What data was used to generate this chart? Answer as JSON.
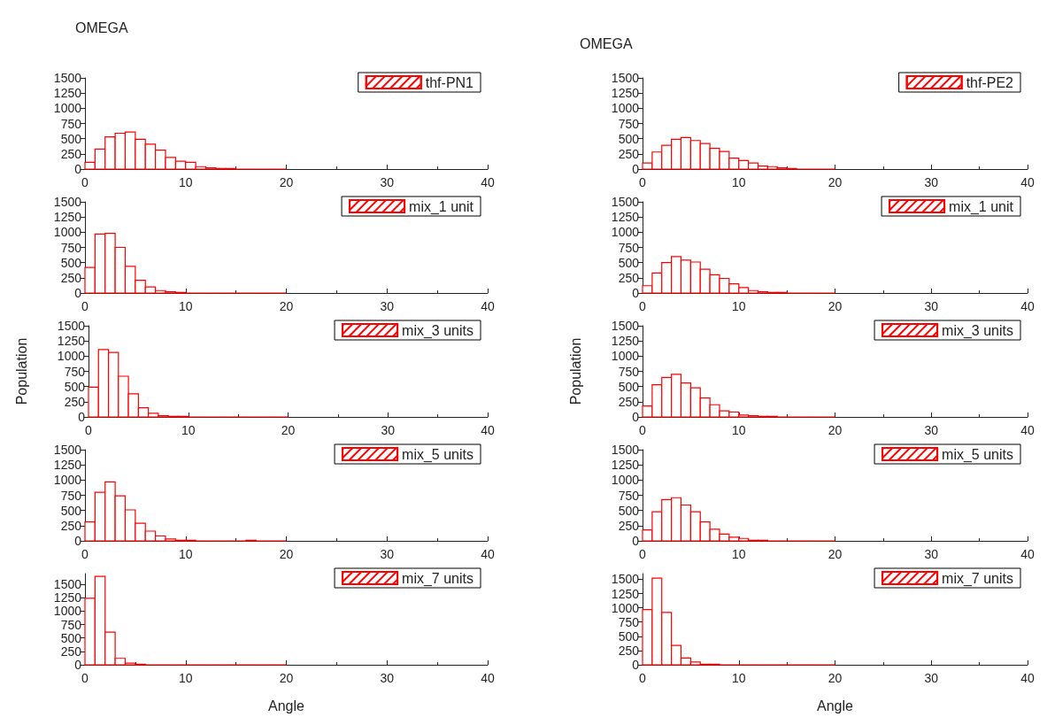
{
  "chart_data": [
    {
      "type": "histogram",
      "title": "OMEGA",
      "bins": [
        0,
        1,
        2,
        3,
        4,
        5,
        6,
        7,
        8,
        9,
        10,
        11,
        12,
        13,
        14,
        15,
        16,
        17,
        18,
        19,
        20
      ],
      "series": [
        {
          "name": "thf-PN1",
          "color": "#ff0000",
          "values": [
            110,
            330,
            530,
            590,
            610,
            490,
            410,
            310,
            190,
            130,
            110,
            40,
            20,
            10,
            10,
            0,
            0,
            0,
            0,
            0
          ]
        }
      ],
      "xlim": [
        0,
        40
      ],
      "xticks": [
        0,
        10,
        20,
        30,
        40
      ],
      "ylim": [
        0,
        1500
      ],
      "yticks": [
        0,
        250,
        500,
        750,
        1000,
        1250,
        1500
      ],
      "legend": "top right"
    },
    {
      "type": "histogram",
      "title": "OMEGA",
      "bins": [
        0,
        1,
        2,
        3,
        4,
        5,
        6,
        7,
        8,
        9,
        10,
        11,
        12,
        13,
        14,
        15,
        16,
        17,
        18,
        19,
        20
      ],
      "series": [
        {
          "name": "thf-PE2",
          "color": "#ff0000",
          "values": [
            100,
            280,
            390,
            490,
            520,
            470,
            420,
            340,
            290,
            180,
            140,
            100,
            50,
            40,
            20,
            10,
            0,
            0,
            0,
            0
          ]
        }
      ],
      "xlim": [
        0,
        40
      ],
      "xticks": [
        0,
        10,
        20,
        30,
        40
      ],
      "ylim": [
        0,
        1500
      ],
      "yticks": [
        0,
        250,
        500,
        750,
        1000,
        1250,
        1500
      ],
      "legend": "top right"
    },
    {
      "type": "histogram",
      "bins": [
        0,
        1,
        2,
        3,
        4,
        5,
        6,
        7,
        8,
        9,
        10,
        11,
        12,
        13,
        14,
        15,
        16,
        17,
        18,
        19,
        20
      ],
      "series": [
        {
          "name": "mix_1 unit",
          "color": "#ff0000",
          "values": [
            420,
            970,
            980,
            750,
            440,
            210,
            100,
            40,
            20,
            10,
            0,
            0,
            0,
            0,
            0,
            0,
            0,
            0,
            0,
            0
          ]
        }
      ],
      "xlim": [
        0,
        40
      ],
      "xticks": [
        0,
        10,
        20,
        30,
        40
      ],
      "ylim": [
        0,
        1500
      ],
      "yticks": [
        0,
        250,
        500,
        750,
        1000,
        1250,
        1500
      ],
      "legend": "top right"
    },
    {
      "type": "histogram",
      "bins": [
        0,
        1,
        2,
        3,
        4,
        5,
        6,
        7,
        8,
        9,
        10,
        11,
        12,
        13,
        14,
        15,
        16,
        17,
        18,
        19,
        20
      ],
      "series": [
        {
          "name": "mix_1 unit",
          "color": "#ff0000",
          "values": [
            120,
            330,
            500,
            600,
            540,
            510,
            390,
            300,
            240,
            150,
            90,
            40,
            20,
            10,
            10,
            0,
            0,
            0,
            0,
            0
          ]
        }
      ],
      "xlim": [
        0,
        40
      ],
      "xticks": [
        0,
        10,
        20,
        30,
        40
      ],
      "ylim": [
        0,
        1500
      ],
      "yticks": [
        0,
        250,
        500,
        750,
        1000,
        1250,
        1500
      ],
      "legend": "top right"
    },
    {
      "type": "histogram",
      "ylabel": "Population",
      "bins": [
        0,
        1,
        2,
        3,
        4,
        5,
        6,
        7,
        8,
        9,
        10,
        11,
        12,
        13,
        14,
        15,
        16,
        17,
        18,
        19,
        20
      ],
      "series": [
        {
          "name": "mix_3 units",
          "color": "#ff0000",
          "values": [
            490,
            1110,
            1060,
            670,
            380,
            150,
            60,
            20,
            10,
            10,
            0,
            0,
            0,
            0,
            0,
            0,
            0,
            0,
            0,
            0
          ]
        }
      ],
      "xlim": [
        0,
        40
      ],
      "xticks": [
        0,
        10,
        20,
        30,
        40
      ],
      "ylim": [
        0,
        1500
      ],
      "yticks": [
        0,
        250,
        500,
        750,
        1000,
        1250,
        1500
      ],
      "legend": "top right"
    },
    {
      "type": "histogram",
      "ylabel": "Population",
      "bins": [
        0,
        1,
        2,
        3,
        4,
        5,
        6,
        7,
        8,
        9,
        10,
        11,
        12,
        13,
        14,
        15,
        16,
        17,
        18,
        19,
        20
      ],
      "series": [
        {
          "name": "mix_3 units",
          "color": "#ff0000",
          "values": [
            180,
            530,
            650,
            700,
            560,
            480,
            310,
            200,
            100,
            80,
            30,
            20,
            10,
            10,
            0,
            0,
            0,
            0,
            0,
            0
          ]
        }
      ],
      "xlim": [
        0,
        40
      ],
      "xticks": [
        0,
        10,
        20,
        30,
        40
      ],
      "ylim": [
        0,
        1500
      ],
      "yticks": [
        0,
        250,
        500,
        750,
        1000,
        1250,
        1500
      ],
      "legend": "top right"
    },
    {
      "type": "histogram",
      "bins": [
        0,
        1,
        2,
        3,
        4,
        5,
        6,
        7,
        8,
        9,
        10,
        11,
        12,
        13,
        14,
        15,
        16,
        17,
        18,
        19,
        20
      ],
      "series": [
        {
          "name": "mix_5 units",
          "color": "#ff0000",
          "values": [
            310,
            800,
            970,
            740,
            510,
            290,
            160,
            80,
            30,
            10,
            10,
            0,
            0,
            0,
            0,
            0,
            10,
            0,
            0,
            0
          ]
        }
      ],
      "xlim": [
        0,
        40
      ],
      "xticks": [
        0,
        10,
        20,
        30,
        40
      ],
      "ylim": [
        0,
        1500
      ],
      "yticks": [
        0,
        250,
        500,
        750,
        1000,
        1250,
        1500
      ],
      "legend": "top right"
    },
    {
      "type": "histogram",
      "bins": [
        0,
        1,
        2,
        3,
        4,
        5,
        6,
        7,
        8,
        9,
        10,
        11,
        12,
        13,
        14,
        15,
        16,
        17,
        18,
        19,
        20
      ],
      "series": [
        {
          "name": "mix_5 units",
          "color": "#ff0000",
          "values": [
            180,
            480,
            680,
            710,
            590,
            480,
            310,
            190,
            110,
            60,
            40,
            10,
            10,
            0,
            0,
            0,
            0,
            0,
            0,
            0
          ]
        }
      ],
      "xlim": [
        0,
        40
      ],
      "xticks": [
        0,
        10,
        20,
        30,
        40
      ],
      "ylim": [
        0,
        1500
      ],
      "yticks": [
        0,
        250,
        500,
        750,
        1000,
        1250,
        1500
      ],
      "legend": "top right"
    },
    {
      "type": "histogram",
      "xlabel": "Angle",
      "bins": [
        0,
        1,
        2,
        3,
        4,
        5,
        6,
        7,
        8,
        9,
        10,
        11,
        12,
        13,
        14,
        15,
        16,
        17,
        18,
        19,
        20
      ],
      "series": [
        {
          "name": "mix_7 units",
          "color": "#ff0000",
          "values": [
            1240,
            1650,
            610,
            120,
            30,
            10,
            0,
            0,
            0,
            0,
            0,
            0,
            0,
            0,
            0,
            0,
            0,
            0,
            0,
            0
          ]
        }
      ],
      "xlim": [
        0,
        40
      ],
      "xticks": [
        0,
        10,
        20,
        30,
        40
      ],
      "ylim": [
        0,
        1700
      ],
      "yticks": [
        0,
        250,
        500,
        750,
        1000,
        1250,
        1500
      ],
      "legend": "top right"
    },
    {
      "type": "histogram",
      "xlabel": "Angle",
      "bins": [
        0,
        1,
        2,
        3,
        4,
        5,
        6,
        7,
        8,
        9,
        10,
        11,
        12,
        13,
        14,
        15,
        16,
        17,
        18,
        19,
        20
      ],
      "series": [
        {
          "name": "mix_7 units",
          "color": "#ff0000",
          "values": [
            970,
            1520,
            920,
            340,
            120,
            50,
            10,
            10,
            0,
            0,
            0,
            0,
            0,
            0,
            0,
            0,
            0,
            0,
            0,
            0
          ]
        }
      ],
      "xlim": [
        0,
        40
      ],
      "xticks": [
        0,
        10,
        20,
        30,
        40
      ],
      "ylim": [
        0,
        1600
      ],
      "yticks": [
        0,
        250,
        500,
        750,
        1000,
        1250,
        1500
      ],
      "legend": "top right"
    }
  ]
}
